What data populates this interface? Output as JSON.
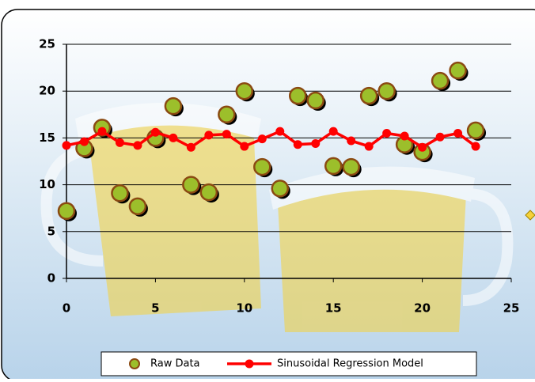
{
  "chart_data": {
    "type": "scatter",
    "x": [
      0,
      1,
      2,
      3,
      4,
      5,
      6,
      7,
      8,
      9,
      10,
      11,
      12,
      13,
      14,
      15,
      16,
      17,
      18,
      19,
      20,
      21,
      22,
      23
    ],
    "series": [
      {
        "name": "Raw Data",
        "type": "scatter",
        "color": "#9cbf2b",
        "edge": "#8b4a12",
        "values": [
          7.2,
          13.9,
          16.1,
          9.1,
          7.7,
          15.0,
          18.4,
          10.0,
          9.2,
          17.5,
          20.0,
          11.9,
          9.6,
          19.5,
          19.0,
          12.0,
          11.9,
          19.5,
          20.0,
          14.3,
          13.5,
          21.1,
          22.2,
          15.8
        ]
      },
      {
        "name": "Sinusoidal Regression Model",
        "type": "line",
        "color": "#ff0000",
        "values": [
          14.2,
          14.6,
          15.7,
          14.5,
          14.2,
          15.6,
          15.0,
          14.0,
          15.3,
          15.4,
          14.1,
          14.9,
          15.7,
          14.3,
          14.4,
          15.7,
          14.7,
          14.1,
          15.5,
          15.2,
          14.0,
          15.1,
          15.5,
          14.1
        ]
      }
    ],
    "xlim": [
      0,
      25
    ],
    "xticks": [
      0,
      5,
      10,
      15,
      20,
      25
    ],
    "ylim": [
      0,
      25
    ],
    "yticks": [
      0,
      5,
      10,
      15,
      20,
      25
    ],
    "grid": true,
    "legend": "bottom"
  }
}
